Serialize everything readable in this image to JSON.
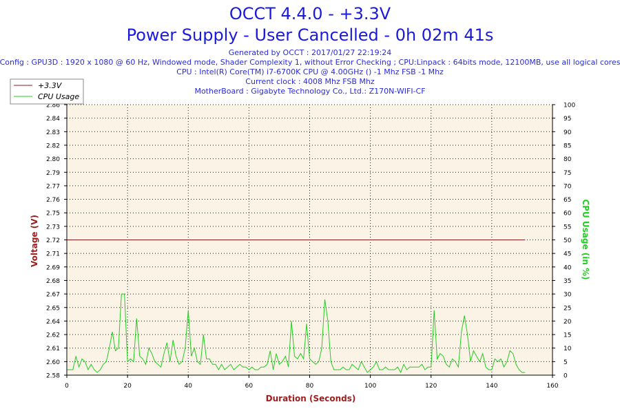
{
  "header": {
    "title_line1": "OCCT 4.4.0 - +3.3V",
    "title_line2": "Power Supply - User Cancelled - 0h 02m 41s",
    "info_lines": [
      "Generated by OCCT : 2017/01/27 22:19:24",
      "Config : GPU3D : 1920 x 1080 @ 60 Hz, Windowed mode, Shader Complexity 1, without Error Checking ; CPU:Linpack : 64bits mode, 12100MB, use all logical cores",
      "CPU : Intel(R) Core(TM) i7-6700K CPU @ 4.00GHz () -1 Mhz FSB -1 Mhz",
      "Current clock : 4008 Mhz FSB  Mhz",
      "MotherBoard : Gigabyte Technology Co., Ltd.: Z170N-WIFI-CF"
    ]
  },
  "colors": {
    "voltage": "#8b1a1a",
    "cpu": "#22cc22",
    "plot_bg": "#faf3e6",
    "title": "#1a1adc",
    "axis_label": "#a01e1e"
  },
  "chart_data": {
    "type": "line",
    "xlabel": "Duration (Seconds)",
    "ylabel": "Voltage (V)",
    "y2label": "CPU Usage (in %)",
    "xlim": [
      0,
      160
    ],
    "ylim": [
      2.58,
      2.86
    ],
    "y2lim": [
      0,
      100
    ],
    "x_ticks": [
      "0",
      "20",
      "40",
      "60",
      "80",
      "100",
      "120",
      "140",
      "160"
    ],
    "y_ticks": [
      "2.58",
      "2.60",
      "2.61",
      "2.62",
      "2.64",
      "2.65",
      "2.67",
      "2.68",
      "2.69",
      "2.71",
      "2.72",
      "2.73",
      "2.75",
      "2.76",
      "2.77",
      "2.79",
      "2.80",
      "2.82",
      "2.83",
      "2.84",
      "2.86"
    ],
    "y2_ticks": [
      "0",
      "5",
      "10",
      "15",
      "20",
      "25",
      "30",
      "35",
      "40",
      "45",
      "50",
      "55",
      "60",
      "65",
      "70",
      "75",
      "80",
      "85",
      "90",
      "95",
      "100"
    ],
    "grid": true,
    "legend_position": "top-left",
    "series": [
      {
        "name": "+3.3V",
        "axis": "left",
        "x": [
          0,
          151
        ],
        "y": [
          2.72,
          2.72
        ]
      },
      {
        "name": "CPU Usage",
        "axis": "right",
        "x": [
          0,
          1,
          2,
          3,
          4,
          5,
          6,
          7,
          8,
          9,
          10,
          11,
          12,
          13,
          14,
          15,
          16,
          17,
          18,
          19,
          20,
          21,
          22,
          23,
          24,
          25,
          26,
          27,
          28,
          29,
          30,
          31,
          32,
          33,
          34,
          35,
          36,
          37,
          38,
          39,
          40,
          41,
          42,
          43,
          44,
          45,
          46,
          47,
          48,
          49,
          50,
          51,
          52,
          53,
          54,
          55,
          56,
          57,
          58,
          59,
          60,
          61,
          62,
          63,
          64,
          65,
          66,
          67,
          68,
          69,
          70,
          71,
          72,
          73,
          74,
          75,
          76,
          77,
          78,
          79,
          80,
          81,
          82,
          83,
          84,
          85,
          86,
          87,
          88,
          89,
          90,
          91,
          92,
          93,
          94,
          95,
          96,
          97,
          98,
          99,
          100,
          101,
          102,
          103,
          104,
          105,
          106,
          107,
          108,
          109,
          110,
          111,
          112,
          113,
          114,
          115,
          116,
          117,
          118,
          119,
          120,
          121,
          122,
          123,
          124,
          125,
          126,
          127,
          128,
          129,
          130,
          131,
          132,
          133,
          134,
          135,
          136,
          137,
          138,
          139,
          140,
          141,
          142,
          143,
          144,
          145,
          146,
          147,
          148,
          149,
          150,
          151
        ],
        "y": [
          2,
          2,
          2,
          7,
          3,
          6,
          5,
          2,
          4,
          2,
          1,
          2,
          4,
          5,
          10,
          16,
          9,
          10,
          30,
          30,
          5,
          6,
          5,
          21,
          7,
          6,
          4,
          10,
          8,
          5,
          4,
          3,
          8,
          12,
          5,
          13,
          7,
          4,
          5,
          10,
          24,
          7,
          10,
          5,
          4,
          15,
          6,
          6,
          4,
          4,
          2,
          4,
          2,
          3,
          4,
          2,
          3,
          4,
          3,
          3,
          2,
          3,
          2,
          2,
          3,
          3,
          4,
          9,
          2,
          8,
          4,
          5,
          7,
          3,
          20,
          7,
          6,
          8,
          6,
          19,
          6,
          5,
          4,
          5,
          10,
          28,
          20,
          5,
          2,
          2,
          2,
          3,
          2,
          2,
          4,
          3,
          2,
          5,
          3,
          1,
          2,
          3,
          5,
          2,
          2,
          3,
          2,
          2,
          2,
          3,
          1,
          4,
          2,
          3,
          3,
          3,
          3,
          4,
          2,
          3,
          3,
          24,
          6,
          8,
          7,
          4,
          3,
          6,
          5,
          3,
          16,
          22,
          15,
          5,
          9,
          7,
          5,
          8,
          3,
          2,
          2,
          6,
          5,
          6,
          3,
          5,
          9,
          8,
          4,
          2,
          1,
          1
        ]
      }
    ]
  }
}
